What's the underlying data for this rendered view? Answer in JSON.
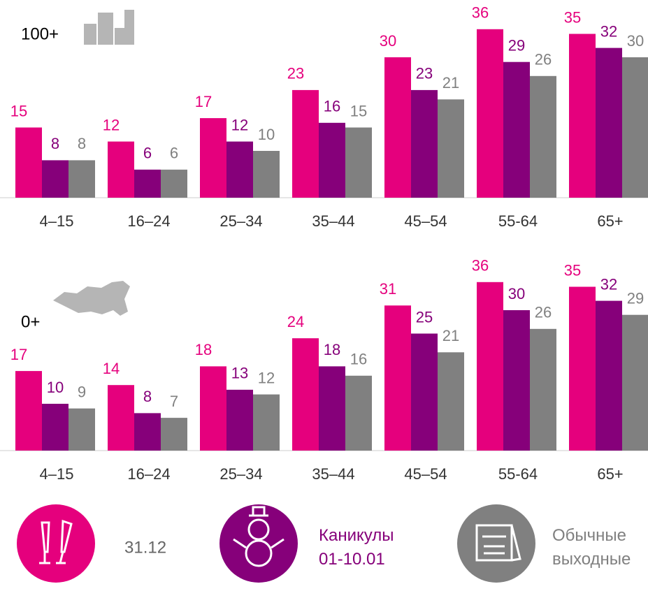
{
  "chart_data": [
    {
      "type": "bar",
      "title": "100+",
      "categories": [
        "4–15",
        "16–24",
        "25–34",
        "35–44",
        "45–54",
        "55-64",
        "65+"
      ],
      "series": [
        {
          "name": "31.12",
          "color": "#e5007d",
          "values": [
            15,
            12,
            17,
            23,
            30,
            36,
            35
          ]
        },
        {
          "name": "Каникулы 01-10.01",
          "color": "#86007a",
          "values": [
            8,
            6,
            12,
            16,
            23,
            29,
            32
          ]
        },
        {
          "name": "Обычные выходные",
          "color": "#808080",
          "values": [
            8,
            6,
            10,
            15,
            21,
            26,
            30
          ]
        }
      ],
      "ylim": [
        0,
        40
      ]
    },
    {
      "type": "bar",
      "title": "0+",
      "categories": [
        "4–15",
        "16–24",
        "25–34",
        "35–44",
        "45–54",
        "55-64",
        "65+"
      ],
      "series": [
        {
          "color": "#e5007d",
          "values": [
            17,
            14,
            18,
            24,
            31,
            36,
            35
          ]
        },
        {
          "color": "#86007a",
          "values": [
            10,
            8,
            13,
            18,
            25,
            30,
            32
          ]
        },
        {
          "color": "#808080",
          "values": [
            9,
            7,
            12,
            16,
            21,
            26,
            29
          ]
        }
      ],
      "ylim": [
        0,
        40
      ]
    }
  ]
}
